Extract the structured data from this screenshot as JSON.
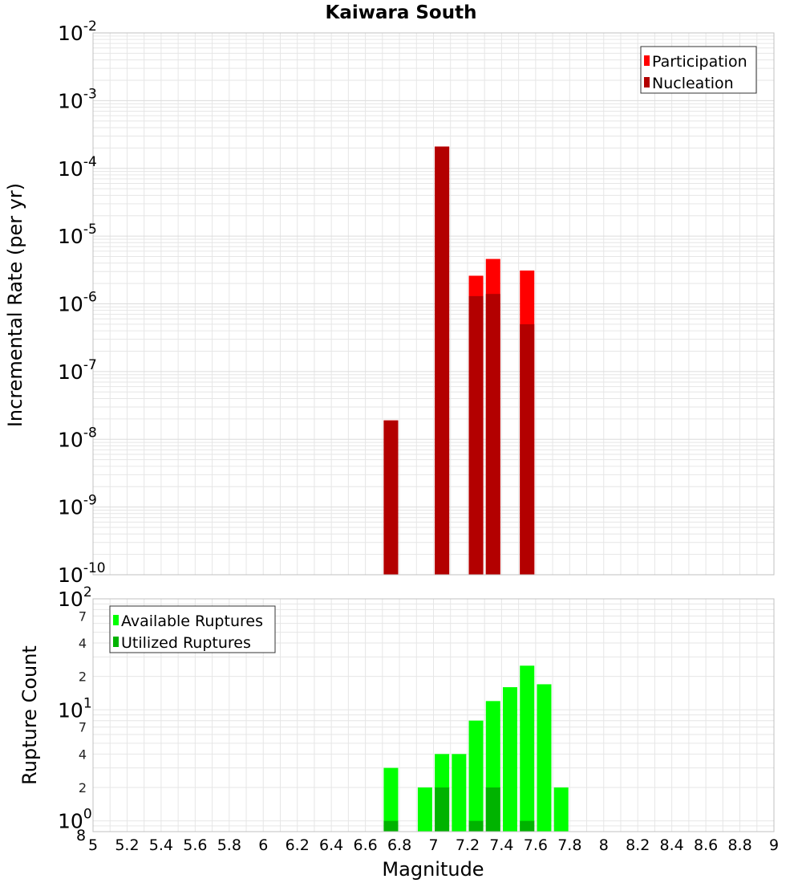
{
  "colors": {
    "participation": "#ff0000",
    "nucleation": "#b30000",
    "available": "#00ff00",
    "utilized": "#00b300",
    "grid": "#e6e6e6",
    "frame": "#c0c0c0"
  },
  "chart_data": [
    {
      "type": "bar",
      "title": "Kaiwara South",
      "xlabel": "Magnitude",
      "ylabel": "Incremental Rate (per yr)",
      "yscale": "log",
      "xlim": [
        5,
        9
      ],
      "ylim": [
        1e-10,
        0.01
      ],
      "y_tick_labels": [
        {
          "base": "10",
          "exp": "-10"
        },
        {
          "base": "10",
          "exp": "-9"
        },
        {
          "base": "10",
          "exp": "-8"
        },
        {
          "base": "10",
          "exp": "-7"
        },
        {
          "base": "10",
          "exp": "-6"
        },
        {
          "base": "10",
          "exp": "-5"
        },
        {
          "base": "10",
          "exp": "-4"
        },
        {
          "base": "10",
          "exp": "-3"
        },
        {
          "base": "10",
          "exp": "-2"
        }
      ],
      "legend": {
        "position": "top-right",
        "entries": [
          "Participation",
          "Nucleation"
        ]
      },
      "series": [
        {
          "name": "Participation",
          "x": [
            6.75,
            7.05,
            7.25,
            7.35,
            7.55
          ],
          "values": [
            1.9e-08,
            0.00021,
            2.6e-06,
            4.6e-06,
            3.1e-06
          ]
        },
        {
          "name": "Nucleation",
          "x": [
            6.75,
            7.05,
            7.25,
            7.35,
            7.55
          ],
          "values": [
            1.9e-08,
            0.00021,
            1.3e-06,
            1.4e-06,
            5e-07
          ]
        }
      ]
    },
    {
      "type": "bar",
      "xlabel": "Magnitude",
      "ylabel": "Rupture Count",
      "yscale": "log",
      "xlim": [
        5,
        9
      ],
      "ylim": [
        0.8,
        100
      ],
      "x_tick_labels": [
        "5",
        "5.2",
        "5.4",
        "5.6",
        "5.8",
        "6",
        "6.2",
        "6.4",
        "6.6",
        "6.8",
        "7",
        "7.2",
        "7.4",
        "7.6",
        "7.8",
        "8",
        "8.2",
        "8.4",
        "8.6",
        "8.8",
        "9"
      ],
      "y_major_labels": [
        {
          "base": "10",
          "exp": "0"
        },
        {
          "base": "10",
          "exp": "1"
        },
        {
          "base": "10",
          "exp": "2"
        }
      ],
      "y_minor_labels": [
        {
          "value": 0.8,
          "label": "8"
        },
        {
          "value": 2,
          "label": "2"
        },
        {
          "value": 4,
          "label": "4"
        },
        {
          "value": 7,
          "label": "7"
        },
        {
          "value": 20,
          "label": "2"
        },
        {
          "value": 40,
          "label": "4"
        },
        {
          "value": 70,
          "label": "7"
        }
      ],
      "legend": {
        "position": "top-left",
        "entries": [
          "Available Ruptures",
          "Utilized Ruptures"
        ]
      },
      "series": [
        {
          "name": "Available Ruptures",
          "x": [
            6.75,
            6.95,
            7.05,
            7.15,
            7.25,
            7.35,
            7.45,
            7.55,
            7.65,
            7.75
          ],
          "values": [
            3,
            2,
            4,
            4,
            8,
            12,
            16,
            25,
            17,
            2
          ]
        },
        {
          "name": "Utilized Ruptures",
          "x": [
            6.75,
            7.05,
            7.25,
            7.35,
            7.55
          ],
          "values": [
            1,
            2,
            1,
            2,
            1
          ]
        }
      ]
    }
  ]
}
